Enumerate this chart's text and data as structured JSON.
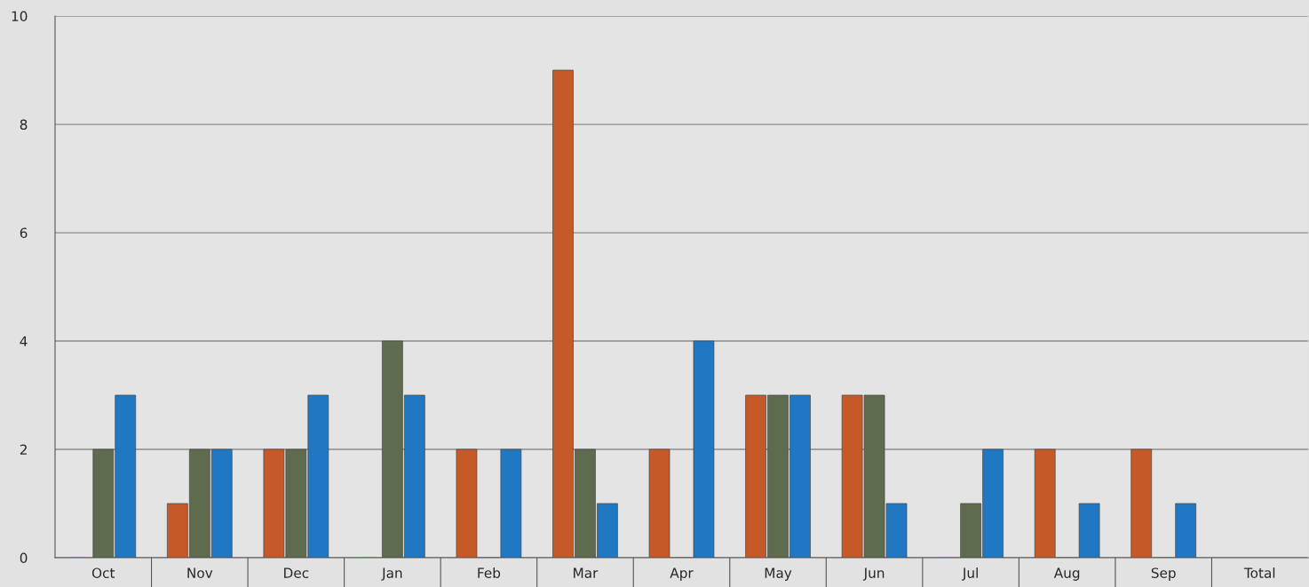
{
  "chart_data": {
    "type": "bar",
    "categories": [
      "Oct",
      "Nov",
      "Dec",
      "Jan",
      "Feb",
      "Mar",
      "Apr",
      "May",
      "Jun",
      "Jul",
      "Aug",
      "Sep",
      "Total"
    ],
    "series": [
      {
        "color": "#c55a28",
        "values": [
          0,
          1,
          2,
          0,
          2,
          9,
          2,
          3,
          3,
          0,
          2,
          2,
          null
        ]
      },
      {
        "color": "#5f6b4e",
        "values": [
          2,
          2,
          2,
          4,
          0,
          2,
          0,
          3,
          3,
          1,
          0,
          0,
          null
        ]
      },
      {
        "color": "#1f78c1",
        "values": [
          3,
          2,
          3,
          3,
          2,
          1,
          4,
          3,
          1,
          2,
          1,
          1,
          null
        ]
      }
    ],
    "ylim": [
      0,
      10
    ],
    "yticks": [
      0,
      2,
      4,
      6,
      8,
      10
    ],
    "grid": "y",
    "legend": false
  }
}
